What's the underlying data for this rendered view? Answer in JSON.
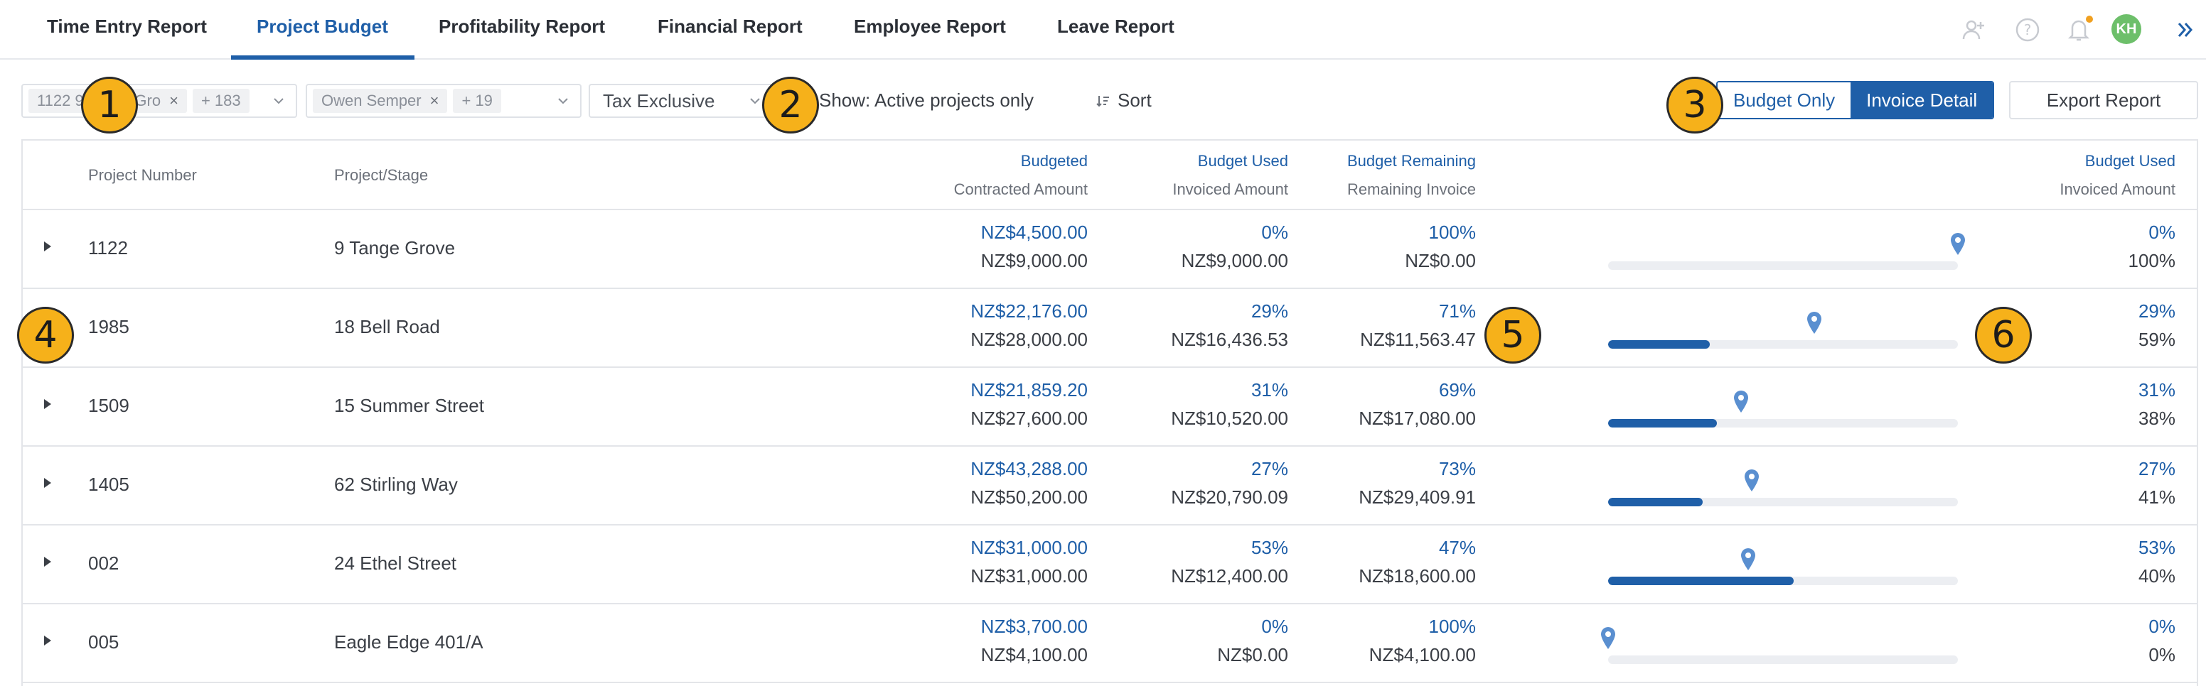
{
  "tabs": [
    {
      "label": "Time Entry Report",
      "active": false
    },
    {
      "label": "Project Budget",
      "active": true
    },
    {
      "label": "Profitability Report",
      "active": false
    },
    {
      "label": "Financial Report",
      "active": false
    },
    {
      "label": "Employee Report",
      "active": false
    },
    {
      "label": "Leave Report",
      "active": false
    }
  ],
  "user": {
    "initials": "KH"
  },
  "icons": {
    "add_user": "add-user-icon",
    "help": "help-icon",
    "bell": "bell-icon",
    "expand": "double-chevron-right-icon"
  },
  "filters": {
    "projects": {
      "chip": "1122 9 Tange Gro",
      "more": "+ 183"
    },
    "employees": {
      "chip": "Owen Semper",
      "more": "+ 19"
    },
    "tax": {
      "value": "Tax Exclusive"
    },
    "show": "Show: Active projects only",
    "sort": "Sort"
  },
  "view_toggle": {
    "budget_only": "Budget Only",
    "invoice_detail": "Invoice Detail",
    "selected": "Invoice Detail"
  },
  "export_label": "Export Report",
  "colors": {
    "accent": "#1f5fa8",
    "callout": "#f6b11a",
    "avatar": "#6dbf6a"
  },
  "table": {
    "headers": {
      "project_number": "Project Number",
      "project_stage": "Project/Stage",
      "budgeted": "Budgeted",
      "contracted_amount": "Contracted Amount",
      "budget_used": "Budget Used",
      "invoiced_amount": "Invoiced Amount",
      "budget_remaining": "Budget Remaining",
      "remaining_invoice": "Remaining Invoice",
      "chart_budget_used": "Budget Used",
      "chart_invoiced_amount": "Invoiced Amount"
    },
    "rows": [
      {
        "number": "1122",
        "name": "9 Tange Grove",
        "budgeted": "NZ$4,500.00",
        "contracted": "NZ$9,000.00",
        "used_pct": "0%",
        "invoiced": "NZ$9,000.00",
        "remaining_pct": "100%",
        "remaining_invoice": "NZ$0.00",
        "chart_used": "0%",
        "chart_invoiced": "100%",
        "used_fraction": 0.0,
        "invoiced_fraction": 1.0,
        "expanded": false
      },
      {
        "number": "1985",
        "name": "18 Bell Road",
        "budgeted": "NZ$22,176.00",
        "contracted": "NZ$28,000.00",
        "used_pct": "29%",
        "invoiced": "NZ$16,436.53",
        "remaining_pct": "71%",
        "remaining_invoice": "NZ$11,563.47",
        "chart_used": "29%",
        "chart_invoiced": "59%",
        "used_fraction": 0.29,
        "invoiced_fraction": 0.59,
        "expanded": true
      },
      {
        "number": "1509",
        "name": "15 Summer Street",
        "budgeted": "NZ$21,859.20",
        "contracted": "NZ$27,600.00",
        "used_pct": "31%",
        "invoiced": "NZ$10,520.00",
        "remaining_pct": "69%",
        "remaining_invoice": "NZ$17,080.00",
        "chart_used": "31%",
        "chart_invoiced": "38%",
        "used_fraction": 0.31,
        "invoiced_fraction": 0.38,
        "expanded": false
      },
      {
        "number": "1405",
        "name": "62 Stirling Way",
        "budgeted": "NZ$43,288.00",
        "contracted": "NZ$50,200.00",
        "used_pct": "27%",
        "invoiced": "NZ$20,790.09",
        "remaining_pct": "73%",
        "remaining_invoice": "NZ$29,409.91",
        "chart_used": "27%",
        "chart_invoiced": "41%",
        "used_fraction": 0.27,
        "invoiced_fraction": 0.41,
        "expanded": false
      },
      {
        "number": "002",
        "name": "24 Ethel Street",
        "budgeted": "NZ$31,000.00",
        "contracted": "NZ$31,000.00",
        "used_pct": "53%",
        "invoiced": "NZ$12,400.00",
        "remaining_pct": "47%",
        "remaining_invoice": "NZ$18,600.00",
        "chart_used": "53%",
        "chart_invoiced": "40%",
        "used_fraction": 0.53,
        "invoiced_fraction": 0.4,
        "expanded": false
      },
      {
        "number": "005",
        "name": "Eagle Edge 401/A",
        "budgeted": "NZ$3,700.00",
        "contracted": "NZ$4,100.00",
        "used_pct": "0%",
        "invoiced": "NZ$0.00",
        "remaining_pct": "100%",
        "remaining_invoice": "NZ$4,100.00",
        "chart_used": "0%",
        "chart_invoiced": "0%",
        "used_fraction": 0.0,
        "invoiced_fraction": 0.0,
        "expanded": false
      }
    ]
  },
  "callouts": [
    "1",
    "2",
    "3",
    "4",
    "5",
    "6"
  ]
}
